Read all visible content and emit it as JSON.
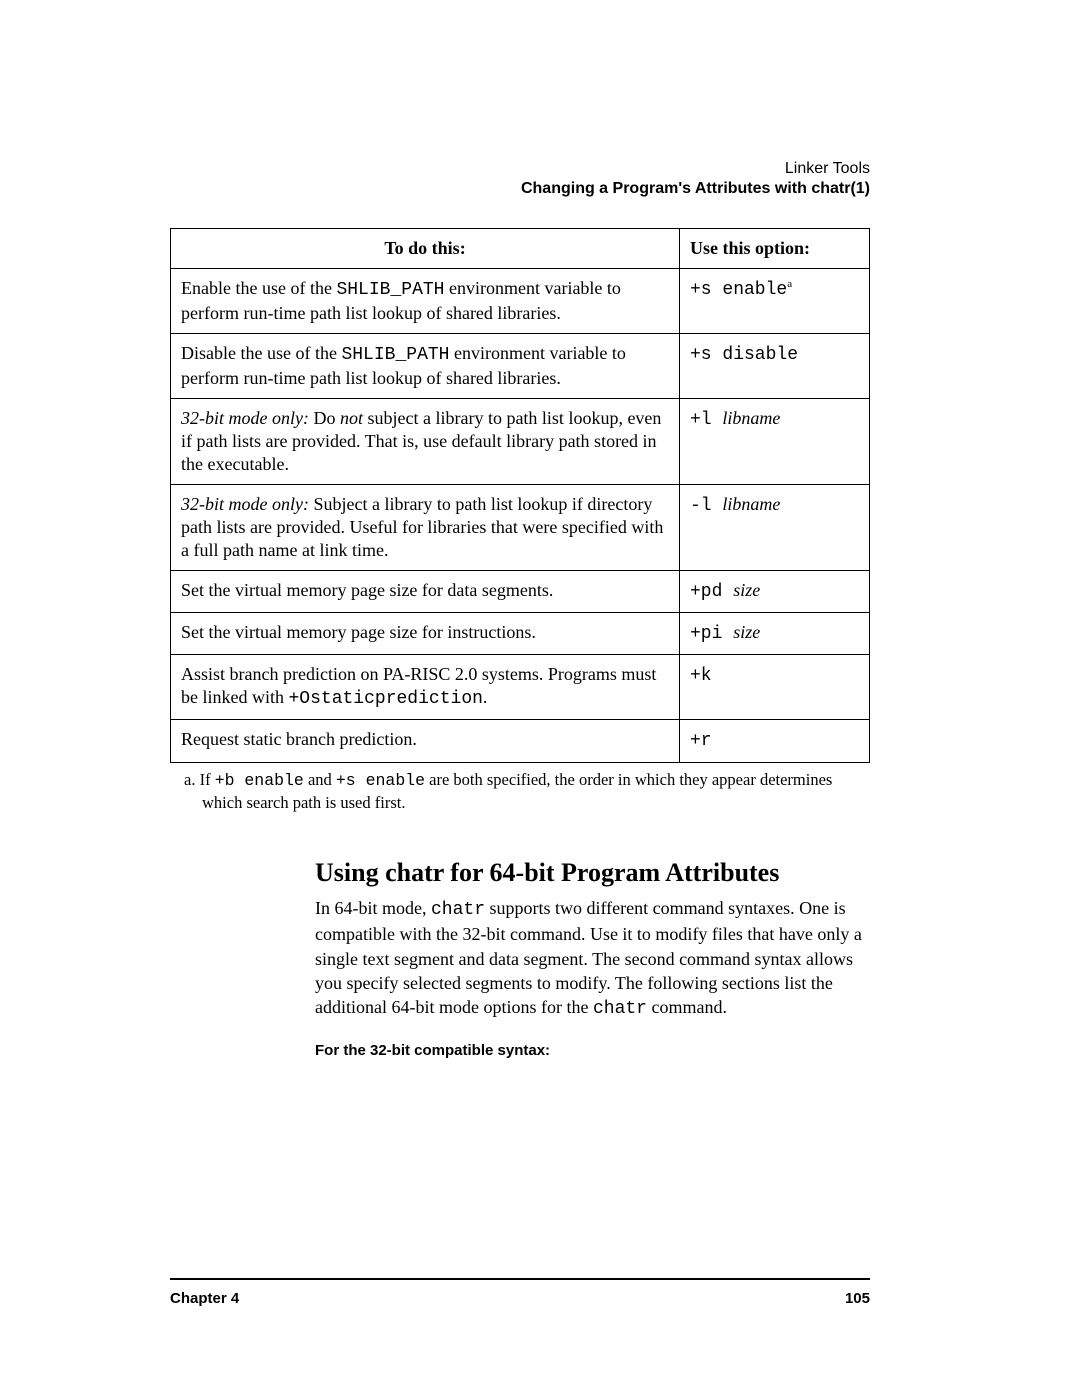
{
  "header": {
    "tool": "Linker Tools",
    "subtitle": "Changing a Program's Attributes with chatr(1)"
  },
  "table": {
    "col1": "To do this:",
    "col2": "Use this option:",
    "rows": [
      {
        "desc_pre": "Enable the use of the ",
        "desc_mono": "SHLIB_PATH",
        "desc_post": " environment variable to perform run-time path list lookup of shared libraries.",
        "opt_mono": "+s enable",
        "opt_sup": "a"
      },
      {
        "desc_pre": "Disable the use of the ",
        "desc_mono": "SHLIB_PATH",
        "desc_post": " environment variable to perform run-time path list lookup of shared libraries.",
        "opt_mono": "+s disable"
      },
      {
        "desc_ital": "32-bit mode only:",
        "desc_pre": " Do ",
        "desc_ital2": "not",
        "desc_post": " subject a library to path list lookup, even if path lists are provided. That is, use default library path stored in the executable.",
        "opt_mono": "+l ",
        "opt_ital": "libname"
      },
      {
        "desc_ital": "32-bit mode only:",
        "desc_post": " Subject a library to path list lookup if directory path lists are provided. Useful for libraries that were specified with a full path name at link time.",
        "opt_mono": "-l ",
        "opt_ital": "libname"
      },
      {
        "desc_post": "Set the virtual memory page size for data segments.",
        "opt_mono": "+pd ",
        "opt_ital": "size"
      },
      {
        "desc_post": "Set the virtual memory page size for instructions.",
        "opt_mono": "+pi ",
        "opt_ital": "size"
      },
      {
        "desc_pre": "Assist branch prediction on PA-RISC 2.0 systems. Programs must be linked with ",
        "desc_mono": "+Ostaticprediction",
        "desc_post": ".",
        "opt_mono": "+k"
      },
      {
        "desc_post": "Request static branch prediction.",
        "opt_mono": "+r"
      }
    ]
  },
  "footnote": {
    "label": "a. If ",
    "m1": "+b enable",
    "mid": " and ",
    "m2": "+s enable",
    "post": " are both specified, the order in which they appear determines which search path is used first."
  },
  "section": {
    "title": "Using chatr for 64-bit Program Attributes",
    "p1a": "In 64-bit mode, ",
    "p1m": "chatr",
    "p1b": " supports two different command syntaxes. One is compatible with the 32-bit command. Use it to modify files that have only a single text segment and data segment. The second command syntax allows you specify selected segments to modify. The following sections list the additional 64-bit mode options for the ",
    "p1m2": "chatr",
    "p1c": " command.",
    "subhead": "For the 32-bit compatible syntax:"
  },
  "footer": {
    "chapter": "Chapter 4",
    "page": "105"
  }
}
